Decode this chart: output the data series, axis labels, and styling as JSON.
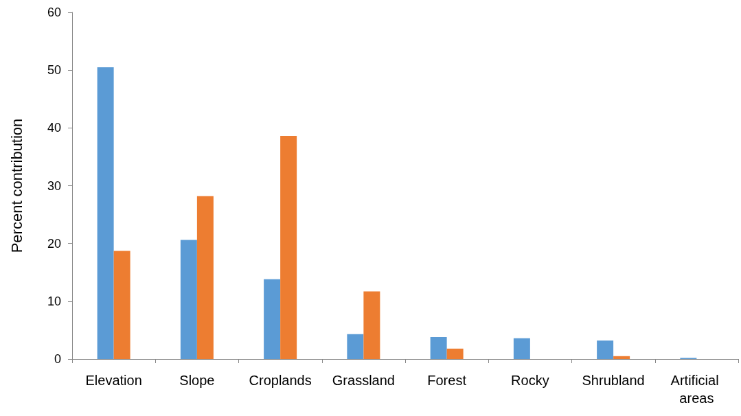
{
  "chart_data": {
    "type": "bar",
    "ylabel": "Percent contribution",
    "categories": [
      "Elevation",
      "Slope",
      "Croplands",
      "Grassland",
      "Forest",
      "Rocky",
      "Shrubland",
      "Artificial areas"
    ],
    "series": [
      {
        "color": "#5b9bd5",
        "values": [
          50.5,
          20.6,
          13.8,
          4.3,
          3.8,
          3.6,
          3.2,
          0.2
        ]
      },
      {
        "color": "#ed7d31",
        "values": [
          18.7,
          28.2,
          38.6,
          11.7,
          1.8,
          0,
          0.5,
          0
        ]
      }
    ],
    "ylim": [
      0,
      60
    ],
    "yticks": [
      0,
      10,
      20,
      30,
      40,
      50,
      60
    ],
    "grid": false
  }
}
